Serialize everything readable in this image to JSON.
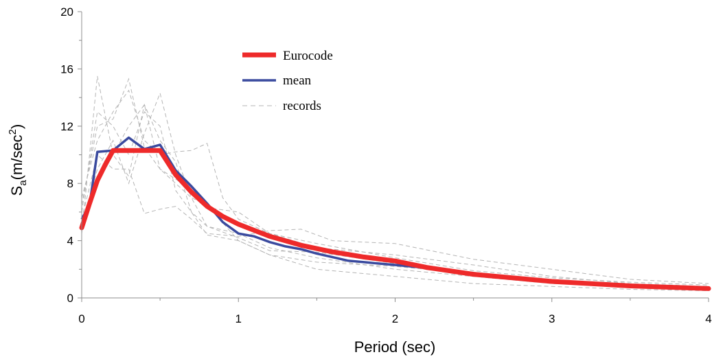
{
  "chart_data": {
    "type": "line",
    "title": "",
    "xlabel": "Period (sec)",
    "ylabel_main": "S",
    "ylabel_sub": "a",
    "ylabel_rest": "(m/sec",
    "ylabel_sup": "2",
    "ylabel_close": ")",
    "xlim": [
      0,
      4
    ],
    "ylim": [
      0,
      20
    ],
    "xticks": [
      0,
      1,
      2,
      3,
      4
    ],
    "yticks": [
      0,
      4,
      8,
      12,
      16,
      20
    ],
    "grid": false,
    "legend_position": "top-center",
    "series": [
      {
        "name": "Eurocode",
        "color": "#ee2a2a",
        "style": "solid-thick",
        "x": [
          0,
          0.05,
          0.1,
          0.15,
          0.2,
          0.3,
          0.4,
          0.5,
          0.6,
          0.7,
          0.8,
          0.9,
          1.0,
          1.2,
          1.4,
          1.6,
          1.8,
          2.0,
          2.2,
          2.5,
          3.0,
          3.5,
          4.0
        ],
        "y": [
          4.9,
          6.6,
          8.2,
          9.3,
          10.3,
          10.3,
          10.3,
          10.3,
          8.6,
          7.4,
          6.4,
          5.7,
          5.15,
          4.3,
          3.68,
          3.22,
          2.86,
          2.58,
          2.13,
          1.65,
          1.15,
          0.84,
          0.65
        ]
      },
      {
        "name": "mean",
        "color": "#3a4a9e",
        "style": "solid",
        "x": [
          0,
          0.05,
          0.1,
          0.2,
          0.3,
          0.4,
          0.5,
          0.6,
          0.7,
          0.8,
          0.9,
          1.0,
          1.1,
          1.2,
          1.3,
          1.4,
          1.5,
          1.6,
          1.7,
          1.8,
          1.9,
          2.0,
          2.1,
          2.2,
          2.4,
          2.6,
          2.8,
          3.0,
          3.2,
          3.4,
          3.6,
          3.8,
          4.0
        ],
        "y": [
          5.5,
          6.5,
          10.2,
          10.3,
          11.2,
          10.4,
          10.7,
          8.9,
          7.8,
          6.6,
          5.3,
          4.5,
          4.3,
          3.9,
          3.6,
          3.4,
          3.1,
          2.85,
          2.6,
          2.5,
          2.4,
          2.3,
          2.2,
          2.1,
          1.75,
          1.5,
          1.3,
          1.15,
          1.0,
          0.9,
          0.8,
          0.7,
          0.6
        ]
      },
      {
        "name": "records",
        "color": "#b4b4b4",
        "style": "dashed",
        "x": [
          0,
          0.1,
          0.2,
          0.3,
          0.4,
          0.5,
          0.6,
          0.7,
          0.8,
          1.0,
          1.2,
          1.5,
          2.0,
          2.5,
          3.0,
          3.5,
          4.0
        ],
        "y": [
          5.0,
          15.5,
          11.0,
          8.5,
          13.5,
          11.0,
          9.5,
          6.0,
          5.0,
          4.2,
          3.3,
          3.2,
          2.4,
          1.8,
          1.2,
          0.9,
          0.7
        ]
      }
    ],
    "records": [
      [
        [
          0,
          4.5
        ],
        [
          0.1,
          15.5
        ],
        [
          0.2,
          10.0
        ],
        [
          0.3,
          8.5
        ],
        [
          0.4,
          13.5
        ],
        [
          0.5,
          11.0
        ],
        [
          0.6,
          9.5
        ],
        [
          0.7,
          6.0
        ],
        [
          0.8,
          5.0
        ],
        [
          1.0,
          4.2
        ],
        [
          1.2,
          3.3
        ],
        [
          1.5,
          3.2
        ],
        [
          2.0,
          2.4
        ],
        [
          2.5,
          1.8
        ],
        [
          3.0,
          1.2
        ],
        [
          3.5,
          0.9
        ],
        [
          4.0,
          0.7
        ]
      ],
      [
        [
          0,
          6.5
        ],
        [
          0.1,
          12.0
        ],
        [
          0.2,
          12.5
        ],
        [
          0.3,
          15.3
        ],
        [
          0.4,
          10.5
        ],
        [
          0.5,
          9.0
        ],
        [
          0.6,
          8.0
        ],
        [
          0.7,
          7.0
        ],
        [
          0.8,
          5.0
        ],
        [
          1.0,
          4.5
        ],
        [
          1.2,
          3.5
        ],
        [
          1.5,
          2.8
        ],
        [
          2.0,
          2.0
        ],
        [
          2.5,
          1.5
        ],
        [
          3.0,
          1.0
        ],
        [
          3.5,
          0.8
        ],
        [
          4.0,
          0.6
        ]
      ],
      [
        [
          0,
          5.0
        ],
        [
          0.1,
          9.0
        ],
        [
          0.2,
          11.0
        ],
        [
          0.3,
          8.0
        ],
        [
          0.4,
          11.5
        ],
        [
          0.5,
          14.3
        ],
        [
          0.6,
          10.0
        ],
        [
          0.7,
          7.0
        ],
        [
          0.8,
          6.5
        ],
        [
          1.0,
          4.0
        ],
        [
          1.2,
          3.0
        ],
        [
          1.5,
          2.5
        ],
        [
          2.0,
          2.2
        ],
        [
          2.5,
          1.7
        ],
        [
          3.0,
          1.2
        ],
        [
          3.5,
          0.9
        ],
        [
          4.0,
          0.7
        ]
      ],
      [
        [
          0,
          7.0
        ],
        [
          0.1,
          11.0
        ],
        [
          0.2,
          13.0
        ],
        [
          0.3,
          14.5
        ],
        [
          0.4,
          11.0
        ],
        [
          0.5,
          10.0
        ],
        [
          0.6,
          10.2
        ],
        [
          0.7,
          10.3
        ],
        [
          0.8,
          10.8
        ],
        [
          0.9,
          7.0
        ],
        [
          1.0,
          5.5
        ],
        [
          1.2,
          4.5
        ],
        [
          1.5,
          3.5
        ],
        [
          2.0,
          3.0
        ],
        [
          2.5,
          2.3
        ],
        [
          3.0,
          1.5
        ],
        [
          3.5,
          1.0
        ],
        [
          4.0,
          0.8
        ]
      ],
      [
        [
          0,
          5.5
        ],
        [
          0.1,
          10.0
        ],
        [
          0.2,
          9.0
        ],
        [
          0.3,
          9.0
        ],
        [
          0.4,
          5.9
        ],
        [
          0.5,
          6.2
        ],
        [
          0.6,
          6.4
        ],
        [
          0.7,
          5.5
        ],
        [
          0.8,
          4.5
        ],
        [
          1.0,
          4.3
        ],
        [
          1.2,
          4.7
        ],
        [
          1.4,
          4.8
        ],
        [
          1.6,
          4.0
        ],
        [
          2.0,
          3.8
        ],
        [
          2.5,
          2.7
        ],
        [
          3.0,
          2.0
        ],
        [
          3.5,
          1.3
        ],
        [
          4.0,
          1.0
        ]
      ],
      [
        [
          0,
          6.0
        ],
        [
          0.1,
          13.0
        ],
        [
          0.2,
          12.0
        ],
        [
          0.3,
          10.0
        ],
        [
          0.4,
          13.0
        ],
        [
          0.5,
          12.0
        ],
        [
          0.6,
          7.5
        ],
        [
          0.7,
          6.0
        ],
        [
          0.8,
          4.4
        ],
        [
          1.0,
          4.0
        ],
        [
          1.2,
          3.0
        ],
        [
          1.5,
          2.0
        ],
        [
          2.0,
          1.5
        ],
        [
          2.5,
          1.0
        ],
        [
          3.0,
          0.8
        ],
        [
          3.5,
          0.6
        ],
        [
          4.0,
          0.5
        ]
      ],
      [
        [
          0,
          5.2
        ],
        [
          0.1,
          8.0
        ],
        [
          0.2,
          10.0
        ],
        [
          0.3,
          12.0
        ],
        [
          0.4,
          13.5
        ],
        [
          0.5,
          9.0
        ],
        [
          0.6,
          8.3
        ],
        [
          0.7,
          7.5
        ],
        [
          0.8,
          6.3
        ],
        [
          1.0,
          6.0
        ],
        [
          1.2,
          4.5
        ],
        [
          1.5,
          3.8
        ],
        [
          2.0,
          2.8
        ],
        [
          2.5,
          1.9
        ],
        [
          3.0,
          1.4
        ],
        [
          3.5,
          1.1
        ],
        [
          4.0,
          0.9
        ]
      ]
    ]
  }
}
